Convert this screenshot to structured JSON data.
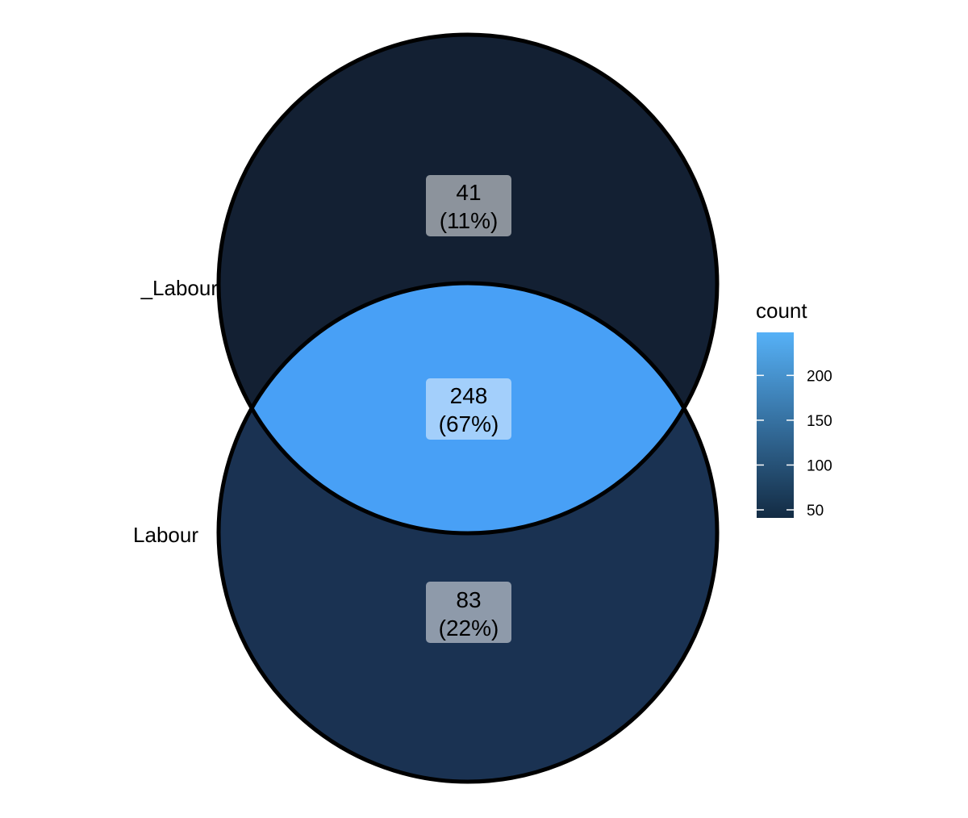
{
  "chart_data": {
    "type": "venn",
    "sets": [
      {
        "label": "_Labour",
        "only_count": 41,
        "only_percent": "(11%)"
      },
      {
        "label": "Labour",
        "only_count": 83,
        "only_percent": "(22%)"
      }
    ],
    "regions": [
      {
        "name": "top-only",
        "count": "41",
        "percent": "(11%)",
        "value": 41
      },
      {
        "name": "intersection",
        "count": "248",
        "percent": "(67%)",
        "value": 248
      },
      {
        "name": "bottom-only",
        "count": "83",
        "percent": "(22%)",
        "value": 83
      }
    ],
    "legend": {
      "title": "count",
      "placement": "right",
      "ticks": [
        "50",
        "100",
        "150",
        "200"
      ],
      "tick_values": [
        50,
        100,
        150,
        200
      ],
      "range": [
        41,
        248
      ],
      "color_low": "#132B43",
      "color_high": "#56B1F7"
    }
  },
  "colors": {
    "top_only": "#132033",
    "bottom_only": "#1a3252",
    "intersection": "#48a0f6",
    "label_box_top": "#8c939c",
    "label_box_bottom": "#8e9aaa",
    "label_box_mid": "#a3cffb",
    "outline": "#000000"
  }
}
